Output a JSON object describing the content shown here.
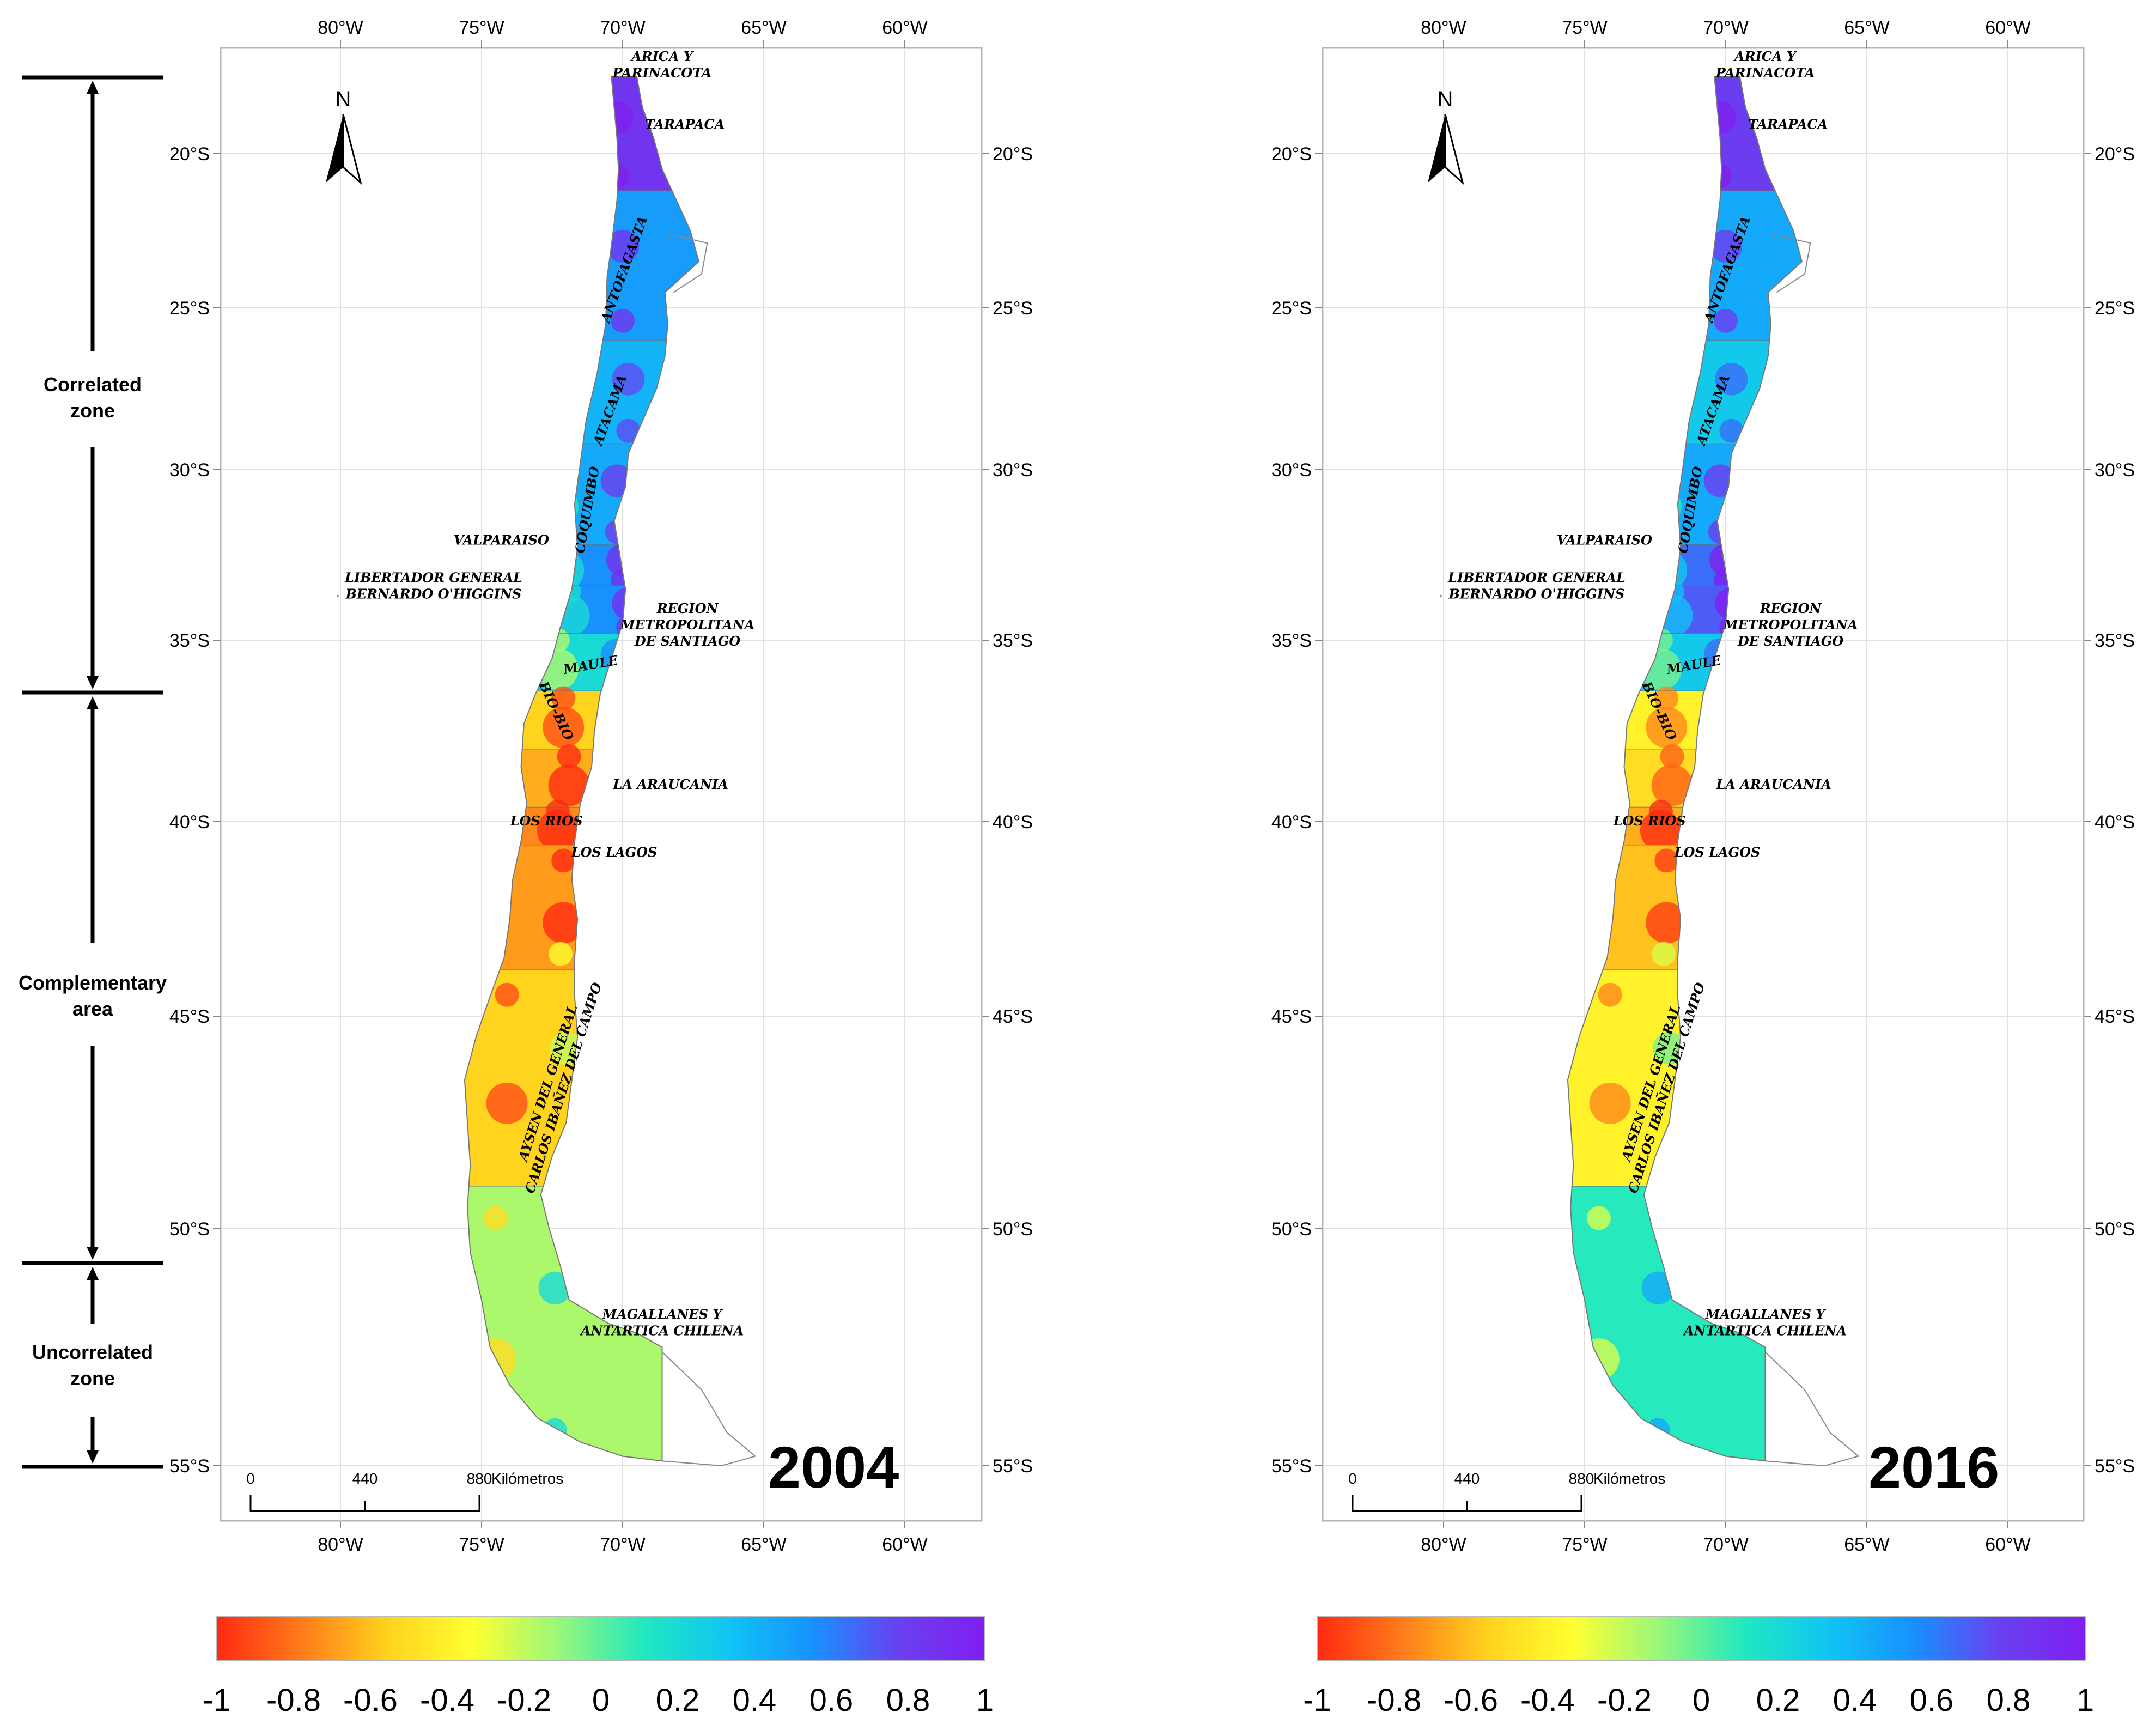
{
  "zones": {
    "correlated": "Correlated\nzone",
    "complementary": "Complementary\narea",
    "uncorrelated": "Uncorrelated\nzone"
  },
  "lon_ticks": [
    "80°W",
    "75°W",
    "70°W",
    "65°W",
    "60°W"
  ],
  "lat_ticks": [
    "20°S",
    "25°S",
    "30°S",
    "35°S",
    "40°S",
    "45°S",
    "50°S",
    "55°S"
  ],
  "lon_values": [
    -80,
    -75,
    -70,
    -65,
    -60
  ],
  "lat_values": [
    -20,
    -25,
    -30,
    -35,
    -40,
    -45,
    -50,
    -55
  ],
  "north_label": "N",
  "scale_bar": {
    "ticks": [
      "0",
      "440",
      "880"
    ],
    "unit": "Kilómetros"
  },
  "colorbar": {
    "ticks": [
      "-1",
      "-0.8",
      "-0.6",
      "-0.4",
      "-0.2",
      "0",
      "0.2",
      "0.4",
      "0.6",
      "0.8",
      "1"
    ],
    "min": -1,
    "max": 1,
    "colors": [
      "#ff2a12",
      "#ff7c1a",
      "#ffd21e",
      "#ffff30",
      "#9af77a",
      "#20e8c0",
      "#10c4f4",
      "#1890ff",
      "#6a40f0",
      "#7f1ff0"
    ]
  },
  "regions": [
    "ARICA Y\nPARINACOTA",
    "TARAPACA",
    "ANTOFAGASTA",
    "ATACAMA",
    "COQUIMBO",
    "VALPARAISO",
    "LIBERTADOR GENERAL\nBERNARDO O'HIGGINS",
    "REGION\nMETROPOLITANA\nDE SANTIAGO",
    "MAULE",
    "BIO-BIO",
    "LA ARAUCANIA",
    "LOS RIOS",
    "LOS LAGOS",
    "AYSEN DEL GENERAL\nCARLOS IBAÑEZ DEL CAMPO",
    "MAGALLANES Y\nANTARTICA CHILENA"
  ],
  "maps": [
    {
      "year": "2004",
      "correlation_by_region": {
        "TARAPACA": 0.85,
        "ANTOFAGASTA": 0.5,
        "ATACAMA": 0.4,
        "COQUIMBO": 0.45,
        "VALPARAISO": 0.55,
        "REGION METROPOLITANA": 0.55,
        "MAULE": 0.2,
        "BIO-BIO": -0.55,
        "LA ARAUCANIA": -0.65,
        "LOS RIOS": -0.75,
        "LOS LAGOS": -0.7,
        "AYSEN": -0.55,
        "MAGALLANES": -0.15
      }
    },
    {
      "year": "2016",
      "correlation_by_region": {
        "TARAPACA": 0.8,
        "ANTOFAGASTA": 0.45,
        "ATACAMA": 0.3,
        "COQUIMBO": 0.45,
        "VALPARAISO": 0.65,
        "REGION METROPOLITANA": 0.7,
        "MAULE": 0.3,
        "BIO-BIO": -0.4,
        "LA ARAUCANIA": -0.5,
        "LOS RIOS": -0.65,
        "LOS LAGOS": -0.6,
        "AYSEN": -0.4,
        "MAGALLANES": 0.1
      }
    }
  ]
}
